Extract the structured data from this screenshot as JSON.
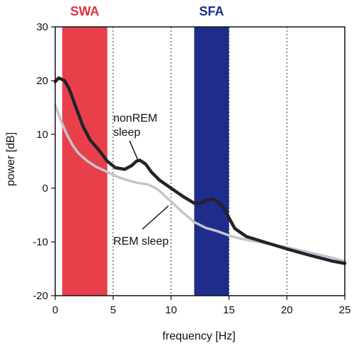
{
  "chart_data": {
    "type": "line",
    "xlabel": "frequency [Hz]",
    "ylabel": "power [dB]",
    "xlim": [
      0,
      25
    ],
    "ylim": [
      -20,
      30
    ],
    "x_ticks": [
      0,
      5,
      10,
      15,
      20,
      25
    ],
    "y_ticks": [
      -20,
      -10,
      0,
      10,
      20,
      30
    ],
    "grid": "vertical dotted lines at 5, 10, 15 and 20 Hz",
    "bands": [
      {
        "label": "SWA",
        "x_range": [
          0.6,
          4.5
        ],
        "color": "#e8404a",
        "label_color": "#e03040"
      },
      {
        "label": "SFA",
        "x_range": [
          12,
          15
        ],
        "color": "#1e2c8c",
        "label_color": "#1e2c8c"
      }
    ],
    "series": [
      {
        "name": "nonREM sleep",
        "color": "#22232b",
        "x": [
          0.0,
          0.3,
          0.8,
          1.2,
          1.8,
          2.4,
          3.0,
          3.8,
          4.5,
          5.2,
          6.0,
          6.6,
          7.0,
          7.3,
          7.8,
          8.3,
          9.0,
          10.0,
          11.0,
          12.0,
          12.5,
          13.0,
          13.5,
          14.0,
          14.5,
          15.0,
          15.5,
          16.5,
          18.0,
          20.0,
          22.0,
          24.0,
          25.0
        ],
        "y": [
          19.8,
          20.5,
          20.0,
          18.5,
          15.0,
          11.5,
          9.0,
          7.0,
          5.0,
          3.8,
          3.5,
          4.2,
          5.0,
          5.2,
          4.5,
          3.0,
          1.5,
          0.0,
          -1.5,
          -2.8,
          -2.8,
          -2.3,
          -2.0,
          -2.4,
          -3.5,
          -5.5,
          -7.5,
          -9.0,
          -10.0,
          -11.3,
          -12.5,
          -13.6,
          -14.0
        ]
      },
      {
        "name": "REM sleep",
        "color": "#c3c4cc",
        "x": [
          0.0,
          0.5,
          1.0,
          1.5,
          2.0,
          2.8,
          3.5,
          4.5,
          5.5,
          6.5,
          7.3,
          8.0,
          8.5,
          9.0,
          10.0,
          11.0,
          12.0,
          13.0,
          14.0,
          15.0,
          16.0,
          17.0,
          18.0,
          19.0,
          20.0,
          22.0,
          24.0,
          25.0
        ],
        "y": [
          15.5,
          12.5,
          10.0,
          8.0,
          6.5,
          5.0,
          4.0,
          3.0,
          2.0,
          1.3,
          0.9,
          0.7,
          0.2,
          -0.5,
          -2.5,
          -4.5,
          -6.3,
          -7.4,
          -8.0,
          -8.8,
          -9.4,
          -9.8,
          -10.2,
          -10.6,
          -11.0,
          -12.0,
          -13.0,
          -13.6
        ]
      }
    ],
    "annotations": [
      {
        "text_lines": [
          "nonREM",
          "sleep"
        ],
        "points_to": "nonREM sleep",
        "at": [
          7.2,
          4.8
        ]
      },
      {
        "text_lines": [
          "REM sleep"
        ],
        "points_to": "REM sleep",
        "at": [
          10.0,
          -2.3
        ]
      }
    ]
  }
}
